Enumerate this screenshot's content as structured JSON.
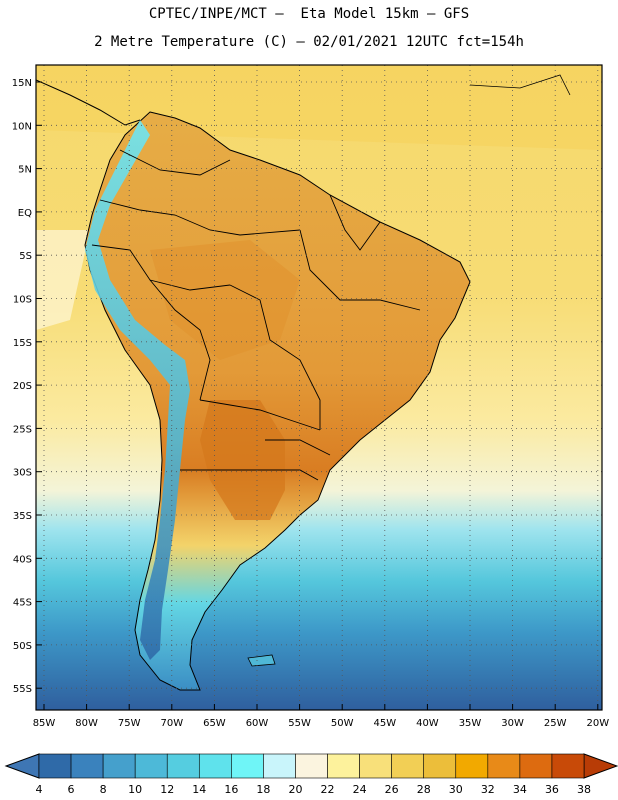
{
  "header": {
    "line1": "CPTEC/INPE/MCT –  Eta Model 15km – GFS",
    "line2": "2 Metre Temperature (C) – 02/01/2021 12UTC fct=154h"
  },
  "map": {
    "lat_labels": [
      "15N",
      "10N",
      "5N",
      "EQ",
      "5S",
      "10S",
      "15S",
      "20S",
      "25S",
      "30S",
      "35S",
      "40S",
      "45S",
      "50S",
      "55S"
    ],
    "lon_labels": [
      "85W",
      "80W",
      "75W",
      "70W",
      "65W",
      "60W",
      "55W",
      "50W",
      "45W",
      "40W",
      "35W",
      "30W",
      "25W",
      "20W"
    ]
  },
  "colorbar": {
    "labels": [
      "4",
      "6",
      "8",
      "10",
      "12",
      "14",
      "16",
      "18",
      "20",
      "22",
      "24",
      "26",
      "28",
      "30",
      "32",
      "34",
      "36",
      "38"
    ],
    "colors": [
      "#2f6aa8",
      "#3a82bd",
      "#45a0cc",
      "#4db9d8",
      "#55cde0",
      "#5fe2ec",
      "#6ff5f7",
      "#c9f5fb",
      "#fbf4df",
      "#fdf29c",
      "#f8e07a",
      "#f2cf55",
      "#ecbe3a",
      "#f2a900",
      "#e88a18",
      "#dd6b10",
      "#c84a08"
    ]
  },
  "colors": {
    "ocean_north": "#f7dc6a",
    "ocean_south_deep": "#2f5f9e",
    "land": "#e3a13c",
    "land_hot": "#d97d22",
    "andes_cold": "#5ec9dc",
    "border": "#000000"
  }
}
